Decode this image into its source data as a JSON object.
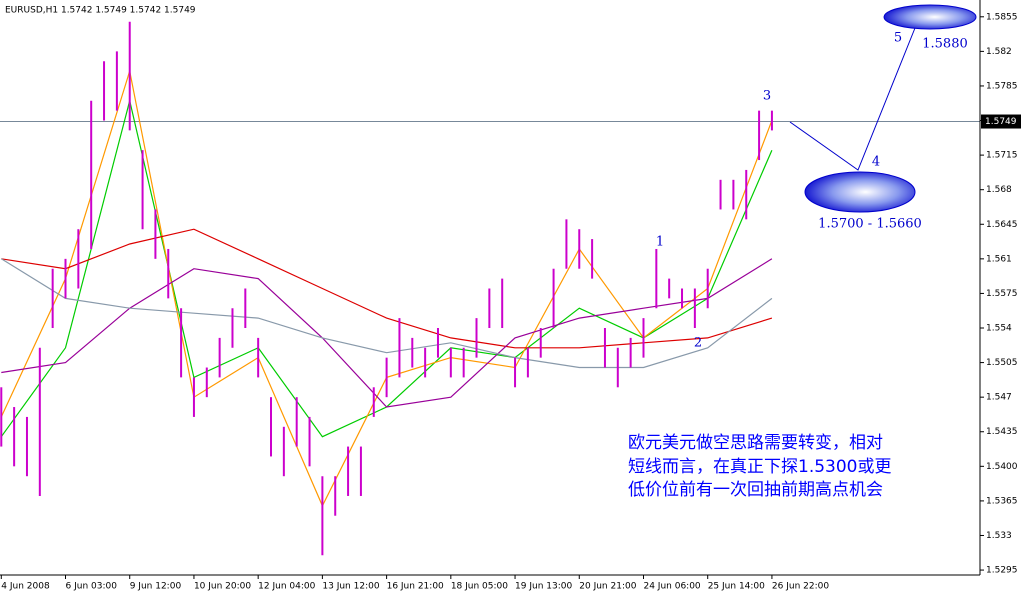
{
  "chart_data": {
    "type": "ohlc",
    "title": "EURUSD,H1  1.5742 1.5749 1.5742 1.5749",
    "bar_color": "#cc00cc",
    "high": [
      1.548,
      1.546,
      1.545,
      1.552,
      1.56,
      1.561,
      1.564,
      1.577,
      1.581,
      1.582,
      1.585,
      1.572,
      1.566,
      1.562,
      1.556,
      1.549,
      1.55,
      1.553,
      1.556,
      1.558,
      1.553,
      1.547,
      1.544,
      1.547,
      1.545,
      1.539,
      1.539,
      1.542,
      1.542,
      1.548,
      1.551,
      1.555,
      1.553,
      1.552,
      1.554,
      1.552,
      1.552,
      1.555,
      1.558,
      1.559,
      1.551,
      1.552,
      1.554,
      1.56,
      1.565,
      1.564,
      1.563,
      1.554,
      1.552,
      1.553,
      1.555,
      1.562,
      1.559,
      1.558,
      1.558,
      1.56,
      1.569,
      1.569,
      1.57,
      1.576,
      1.576
    ],
    "low": [
      1.542,
      1.54,
      1.539,
      1.537,
      1.554,
      1.557,
      1.558,
      1.562,
      1.575,
      1.576,
      1.574,
      1.564,
      1.561,
      1.557,
      1.549,
      1.545,
      1.547,
      1.549,
      1.552,
      1.554,
      1.549,
      1.541,
      1.539,
      1.542,
      1.54,
      1.531,
      1.535,
      1.537,
      1.537,
      1.545,
      1.547,
      1.549,
      1.55,
      1.549,
      1.551,
      1.549,
      1.549,
      1.551,
      1.554,
      1.554,
      1.548,
      1.549,
      1.551,
      1.554,
      1.56,
      1.56,
      1.559,
      1.55,
      1.548,
      1.55,
      1.551,
      1.556,
      1.557,
      1.556,
      1.554,
      1.556,
      1.566,
      1.566,
      1.565,
      1.571,
      1.574
    ],
    "ma_x": [
      0,
      5,
      10,
      15,
      20,
      25,
      30,
      35,
      40,
      45,
      50,
      55,
      60
    ],
    "series": [
      {
        "color": "#00cc00",
        "values": [
          1.543,
          1.552,
          1.577,
          1.549,
          1.552,
          1.543,
          1.546,
          1.552,
          1.551,
          1.556,
          1.553,
          1.557,
          1.572
        ]
      },
      {
        "color": "#ff9900",
        "values": [
          1.545,
          1.559,
          1.58,
          1.547,
          1.551,
          1.536,
          1.549,
          1.551,
          1.55,
          1.562,
          1.553,
          1.558,
          1.575
        ]
      },
      {
        "color": "#dd0000",
        "values": [
          1.561,
          1.56,
          1.5625,
          1.564,
          1.561,
          1.558,
          1.555,
          1.553,
          1.552,
          1.552,
          1.5525,
          1.553,
          1.555
        ]
      },
      {
        "color": "#990099",
        "values": [
          1.5495,
          1.5505,
          1.556,
          1.56,
          1.559,
          1.553,
          1.546,
          1.547,
          1.553,
          1.555,
          1.556,
          1.557,
          1.561
        ]
      },
      {
        "color": "#8899aa",
        "values": [
          1.561,
          1.557,
          1.556,
          1.5555,
          1.555,
          1.553,
          1.5515,
          1.5525,
          1.551,
          1.55,
          1.55,
          1.552,
          1.557
        ]
      }
    ],
    "current_price": 1.5749,
    "ylim": [
      1.529,
      1.5872
    ],
    "yticks": [
      1.5855,
      1.582,
      1.5785,
      {
        "value": 1.575,
        "label": "1.5750"
      },
      1.5715,
      1.568,
      1.5645,
      1.561,
      1.5575,
      1.554,
      1.5505,
      1.547,
      1.5435,
      {
        "value": 1.54,
        "label": "1.5400"
      },
      1.5365,
      1.533,
      1.5295
    ],
    "xlim": [
      -0.1,
      76.2
    ],
    "xticks": [
      {
        "value": 0,
        "label": "4 Jun 2008"
      },
      {
        "value": 5,
        "label": "6 Jun 03:00"
      },
      {
        "value": 10,
        "label": "9 Jun 12:00"
      },
      {
        "value": 15,
        "label": "10 Jun 20:00"
      },
      {
        "value": 20,
        "label": "12 Jun 04:00"
      },
      {
        "value": 25,
        "label": "13 Jun 12:00"
      },
      {
        "value": 30,
        "label": "16 Jun 21:00"
      },
      {
        "value": 35,
        "label": "18 Jun 05:00"
      },
      {
        "value": 40,
        "label": "19 Jun 13:00"
      },
      {
        "value": 45,
        "label": "20 Jun 21:00"
      },
      {
        "value": 50,
        "label": "24 Jun 06:00"
      },
      {
        "value": 55,
        "label": "25 Jun 14:00"
      },
      {
        "value": 60,
        "label": "26 Jun 22:00"
      }
    ],
    "annotations": [
      "1",
      "2",
      "3",
      "4",
      "5",
      "1.5880",
      "1.5700 - 1.5660"
    ],
    "comment": [
      "欧元美元做空思路需要转变，相对",
      "短线而言，在真正下探1.5300或更",
      "低价位前有一次回抽前期高点机会"
    ]
  }
}
